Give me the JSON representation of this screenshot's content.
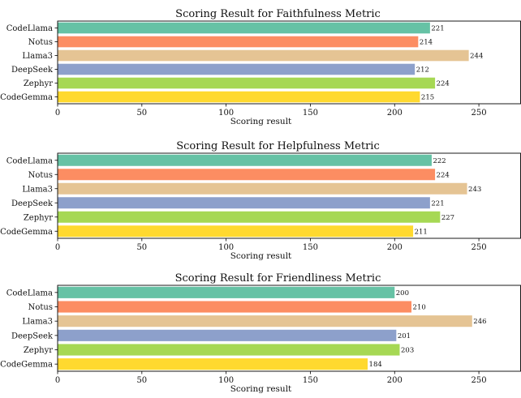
{
  "colors": [
    "#66c2a5",
    "#fc8d62",
    "#e5c494",
    "#8da0cb",
    "#a6d854",
    "#ffd92f"
  ],
  "chart_data": [
    {
      "type": "bar",
      "orientation": "horizontal",
      "title": "Scoring Result for Faithfulness Metric",
      "xlabel": "Scoring result",
      "xlim": [
        0,
        275
      ],
      "xticks": [
        0,
        50,
        100,
        150,
        200,
        250
      ],
      "categories": [
        "CodeLlama",
        "Notus",
        "Llama3",
        "DeepSeek",
        "Zephyr",
        "CodeGemma"
      ],
      "values": [
        221,
        214,
        244,
        212,
        224,
        215
      ],
      "value_labels": [
        "221",
        "214",
        "244",
        "212",
        "224",
        "215"
      ],
      "grid": false
    },
    {
      "type": "bar",
      "orientation": "horizontal",
      "title": "Scoring Result for Helpfulness Metric",
      "xlabel": "Scoring result",
      "xlim": [
        0,
        275
      ],
      "xticks": [
        0,
        50,
        100,
        150,
        200,
        250
      ],
      "categories": [
        "CodeLlama",
        "Notus",
        "Llama3",
        "DeepSeek",
        "Zephyr",
        "CodeGemma"
      ],
      "values": [
        222,
        224,
        243,
        221,
        227,
        211
      ],
      "value_labels": [
        "222",
        "224",
        "243",
        "221",
        "227",
        "211"
      ],
      "grid": false
    },
    {
      "type": "bar",
      "orientation": "horizontal",
      "title": "Scoring Result for Friendliness Metric",
      "xlabel": "Scoring result",
      "xlim": [
        0,
        275
      ],
      "xticks": [
        0,
        50,
        100,
        150,
        200,
        250
      ],
      "categories": [
        "CodeLlama",
        "Notus",
        "Llama3",
        "DeepSeek",
        "Zephyr",
        "CodeGemma"
      ],
      "values": [
        200,
        210,
        246,
        201,
        203,
        184
      ],
      "value_labels": [
        "200",
        "210",
        "246",
        "201",
        "203",
        "184"
      ],
      "grid": false
    }
  ]
}
